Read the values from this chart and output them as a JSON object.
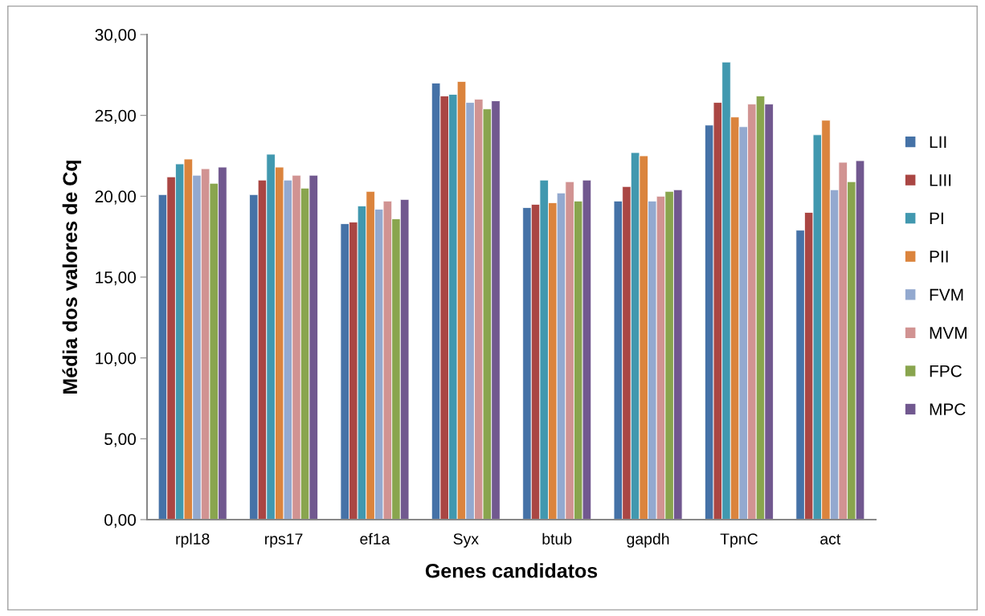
{
  "chart_data": {
    "type": "bar",
    "xlabel": "Genes candidatos",
    "ylabel": "Média dos valores de Cq",
    "categories": [
      "rpl18",
      "rps17",
      "ef1a",
      "Syx",
      "btub",
      "gapdh",
      "TpnC",
      "act"
    ],
    "series": [
      {
        "name": "LII",
        "color": "#4572a7",
        "values": [
          20.1,
          20.1,
          18.3,
          27.0,
          19.3,
          19.7,
          24.4,
          17.9
        ]
      },
      {
        "name": "LIII",
        "color": "#aa4643",
        "values": [
          21.2,
          21.0,
          18.4,
          26.2,
          19.5,
          20.6,
          25.8,
          19.0
        ]
      },
      {
        "name": "PI",
        "color": "#4198af",
        "values": [
          22.0,
          22.6,
          19.4,
          26.3,
          21.0,
          22.7,
          28.3,
          23.8
        ]
      },
      {
        "name": "PII",
        "color": "#db843d",
        "values": [
          22.3,
          21.8,
          20.3,
          27.1,
          19.6,
          22.5,
          24.9,
          24.7
        ]
      },
      {
        "name": "FVM",
        "color": "#93a9cf",
        "values": [
          21.3,
          21.0,
          19.2,
          25.8,
          20.2,
          19.7,
          24.3,
          20.4
        ]
      },
      {
        "name": "MVM",
        "color": "#d19392",
        "values": [
          21.7,
          21.3,
          19.7,
          26.0,
          20.9,
          20.0,
          25.7,
          22.1
        ]
      },
      {
        "name": "FPC",
        "color": "#89a54e",
        "values": [
          20.8,
          20.5,
          18.6,
          25.4,
          19.7,
          20.3,
          26.2,
          20.9
        ]
      },
      {
        "name": "MPC",
        "color": "#71588f",
        "values": [
          21.8,
          21.3,
          19.8,
          25.9,
          21.0,
          20.4,
          25.7,
          22.2
        ]
      }
    ],
    "ylim": [
      0,
      30
    ],
    "yticks": [
      {
        "value": 0,
        "label": "0,00"
      },
      {
        "value": 5,
        "label": "5,00"
      },
      {
        "value": 10,
        "label": "10,00"
      },
      {
        "value": 15,
        "label": "15,00"
      },
      {
        "value": 20,
        "label": "20,00"
      },
      {
        "value": 25,
        "label": "25,00"
      },
      {
        "value": 30,
        "label": "30,00"
      }
    ],
    "legend": "right",
    "grid": false
  }
}
